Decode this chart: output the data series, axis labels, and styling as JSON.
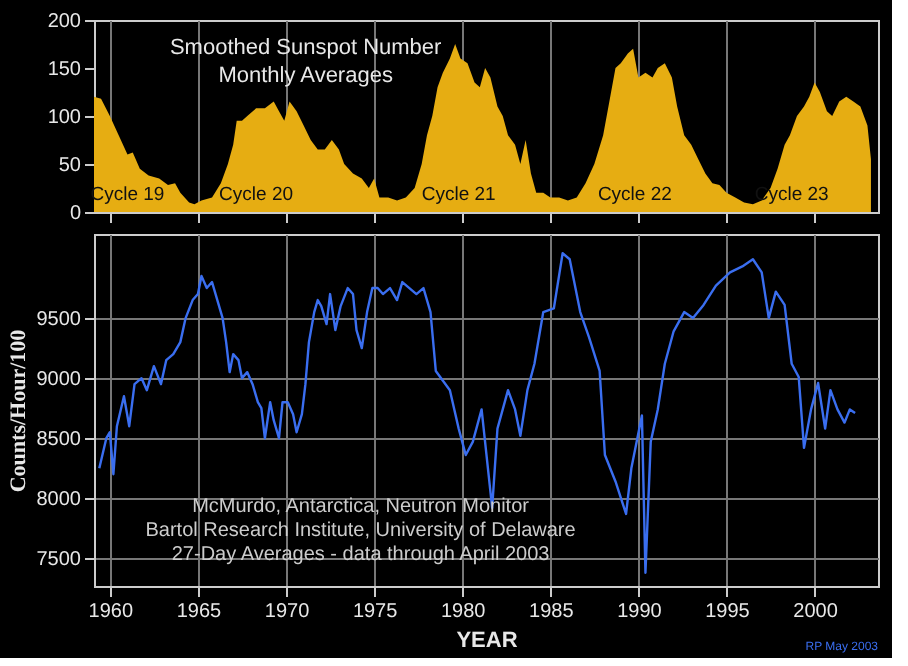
{
  "chart_data": [
    {
      "type": "area",
      "x": [
        1959.1,
        1959.5,
        1960.0,
        1960.5,
        1961.0,
        1961.3,
        1961.7,
        1962.2,
        1962.8,
        1963.3,
        1963.7,
        1964.0,
        1964.5,
        1964.8,
        1965.2,
        1965.8,
        1966.3,
        1966.7,
        1967.0,
        1967.2,
        1967.5,
        1967.8,
        1968.3,
        1968.8,
        1969.3,
        1969.6,
        1969.9,
        1970.2,
        1970.6,
        1971.0,
        1971.4,
        1971.8,
        1972.2,
        1972.6,
        1973.0,
        1973.3,
        1973.8,
        1974.3,
        1974.7,
        1975.0,
        1975.3,
        1975.8,
        1976.3,
        1976.8,
        1977.3,
        1977.7,
        1978.0,
        1978.3,
        1978.6,
        1978.9,
        1979.3,
        1979.6,
        1979.9,
        1980.3,
        1980.7,
        1981.0,
        1981.3,
        1981.6,
        1982.0,
        1982.3,
        1982.6,
        1983.0,
        1983.3,
        1983.6,
        1983.9,
        1984.2,
        1984.6,
        1985.0,
        1985.5,
        1986.0,
        1986.5,
        1987.0,
        1987.5,
        1988.0,
        1988.3,
        1988.7,
        1989.0,
        1989.4,
        1989.7,
        1990.0,
        1990.4,
        1990.8,
        1991.1,
        1991.5,
        1991.9,
        1992.2,
        1992.6,
        1993.0,
        1993.4,
        1993.8,
        1994.2,
        1994.6,
        1995.0,
        1995.5,
        1996.0,
        1996.5,
        1997.0,
        1997.5,
        1997.9,
        1998.3,
        1998.6,
        1999.0,
        1999.4,
        1999.7,
        2000.0,
        2000.3,
        2000.7,
        2001.0,
        2001.4,
        2001.8,
        2002.2,
        2002.6,
        2003.0,
        2003.2
      ],
      "series": [
        {
          "color": "#e6ad12",
          "values": [
            120,
            118,
            100,
            80,
            60,
            62,
            45,
            38,
            35,
            28,
            30,
            20,
            10,
            8,
            12,
            15,
            30,
            50,
            70,
            95,
            95,
            100,
            108,
            108,
            115,
            105,
            95,
            115,
            105,
            90,
            75,
            65,
            65,
            75,
            65,
            50,
            40,
            35,
            25,
            35,
            15,
            15,
            12,
            15,
            25,
            50,
            80,
            100,
            130,
            145,
            160,
            175,
            160,
            155,
            135,
            130,
            150,
            140,
            110,
            100,
            80,
            70,
            50,
            75,
            40,
            20,
            20,
            15,
            15,
            12,
            15,
            30,
            50,
            80,
            110,
            150,
            155,
            165,
            170,
            140,
            145,
            140,
            150,
            155,
            140,
            110,
            80,
            70,
            55,
            40,
            30,
            28,
            20,
            15,
            10,
            8,
            12,
            25,
            45,
            70,
            80,
            100,
            110,
            120,
            135,
            125,
            105,
            100,
            115,
            120,
            115,
            110,
            90,
            55
          ]
        }
      ],
      "xlim": [
        1959.1,
        2003.6
      ],
      "xticks": [
        1960,
        1965,
        1970,
        1975,
        1980,
        1985,
        1990,
        1995,
        2000
      ],
      "ylim": [
        0,
        200
      ],
      "yticks": [
        0,
        50,
        100,
        150,
        200
      ],
      "grid": "x",
      "tick_labels": "y",
      "annotations": [
        "Smoothed Sunspot Number",
        "Monthly Averages",
        {
          "text": "Cycle 19",
          "x": 1961.0,
          "y": 8
        },
        {
          "text": "Cycle 20",
          "x": 1968.3,
          "y": 8
        },
        {
          "text": "Cycle 21",
          "x": 1979.8,
          "y": 8
        },
        {
          "text": "Cycle 22",
          "x": 1989.8,
          "y": 8
        },
        {
          "text": "Cycle 23",
          "x": 1998.7,
          "y": 8
        }
      ]
    },
    {
      "type": "line",
      "x": [
        1959.4,
        1959.8,
        1960.0,
        1960.2,
        1960.4,
        1960.8,
        1961.1,
        1961.4,
        1961.8,
        1962.1,
        1962.5,
        1962.9,
        1963.2,
        1963.6,
        1964.0,
        1964.3,
        1964.7,
        1965.0,
        1965.2,
        1965.5,
        1965.8,
        1966.1,
        1966.4,
        1966.6,
        1966.8,
        1967.0,
        1967.3,
        1967.5,
        1967.8,
        1968.1,
        1968.4,
        1968.6,
        1968.8,
        1969.1,
        1969.3,
        1969.6,
        1969.8,
        1970.1,
        1970.4,
        1970.6,
        1970.9,
        1971.1,
        1971.3,
        1971.6,
        1971.8,
        1972.0,
        1972.3,
        1972.5,
        1972.8,
        1973.1,
        1973.5,
        1973.8,
        1974.0,
        1974.3,
        1974.6,
        1974.9,
        1975.2,
        1975.5,
        1975.9,
        1976.3,
        1976.6,
        1977.0,
        1977.4,
        1977.8,
        1978.2,
        1978.5,
        1979.3,
        1979.8,
        1980.2,
        1980.6,
        1981.1,
        1981.7,
        1982.0,
        1982.6,
        1983.0,
        1983.3,
        1983.7,
        1984.1,
        1984.6,
        1985.2,
        1985.7,
        1986.1,
        1986.7,
        1987.2,
        1987.8,
        1988.1,
        1988.7,
        1989.3,
        1989.6,
        1990.2,
        1990.4,
        1990.7,
        1991.1,
        1991.5,
        1992.0,
        1992.6,
        1993.1,
        1993.7,
        1994.4,
        1995.2,
        1995.9,
        1996.5,
        1997.0,
        1997.4,
        1997.8,
        1998.3,
        1998.7,
        1999.1,
        1999.4,
        1999.8,
        2000.2,
        2000.6,
        2000.9,
        2001.3,
        2001.7,
        2002.0,
        2002.3
      ],
      "series": [
        {
          "color": "#3a6ef0",
          "values": [
            8250,
            8500,
            8550,
            8200,
            8600,
            8850,
            8600,
            8950,
            9000,
            8900,
            9100,
            8950,
            9150,
            9200,
            9300,
            9500,
            9650,
            9700,
            9850,
            9750,
            9800,
            9650,
            9500,
            9300,
            9050,
            9200,
            9150,
            9000,
            9050,
            8950,
            8800,
            8750,
            8500,
            8800,
            8650,
            8500,
            8800,
            8800,
            8700,
            8550,
            8700,
            8950,
            9300,
            9550,
            9650,
            9600,
            9450,
            9700,
            9400,
            9600,
            9750,
            9700,
            9400,
            9250,
            9550,
            9750,
            9750,
            9700,
            9750,
            9650,
            9800,
            9750,
            9700,
            9750,
            9550,
            9060,
            8900,
            8580,
            8360,
            8470,
            8740,
            7920,
            8580,
            8900,
            8740,
            8520,
            8900,
            9120,
            9550,
            9580,
            10040,
            9990,
            9550,
            9340,
            9060,
            8360,
            8140,
            7870,
            8250,
            8690,
            7380,
            8470,
            8740,
            9120,
            9390,
            9550,
            9500,
            9610,
            9770,
            9880,
            9930,
            9990,
            9880,
            9500,
            9720,
            9610,
            9120,
            9010,
            8420,
            8740,
            8960,
            8580,
            8900,
            8740,
            8630,
            8740,
            8710
          ]
        }
      ],
      "xlim": [
        1959.1,
        2003.6
      ],
      "xticks": [
        1960,
        1965,
        1970,
        1975,
        1980,
        1985,
        1990,
        1995,
        2000
      ],
      "ylim": [
        7270,
        10200
      ],
      "yticks": [
        7500,
        8000,
        8500,
        9000,
        9500
      ],
      "grid": true,
      "xlabel": "YEAR",
      "ylabel": "Counts/Hour/100",
      "annotations": [
        "McMurdo, Antarctica, Neutron Monitor",
        "Bartol Research Institute, University of Delaware",
        "27-Day Averages - data through April 2003",
        "RP May 2003"
      ]
    }
  ]
}
